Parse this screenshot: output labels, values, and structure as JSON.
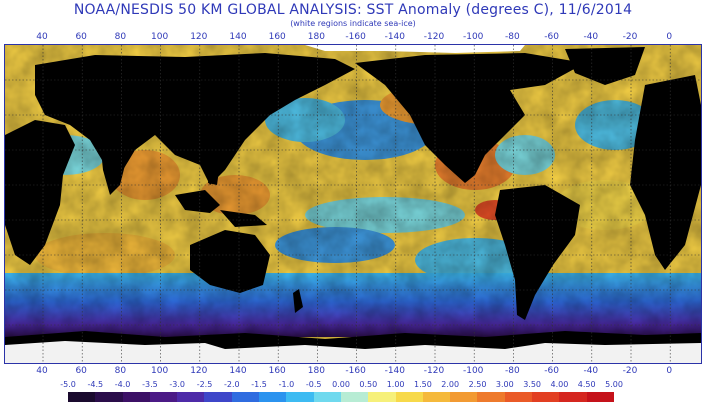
{
  "header": {
    "title": "NOAA/NESDIS 50 KM GLOBAL ANALYSIS: SST Anomaly (degrees C), 11/6/2014",
    "subtitle": "(white regions indicate sea-ice)"
  },
  "axis": {
    "longitude_labels": [
      "40",
      "60",
      "80",
      "100",
      "120",
      "140",
      "160",
      "180",
      "-160",
      "-140",
      "-120",
      "-100",
      "-80",
      "-60",
      "-40",
      "-20",
      "0"
    ]
  },
  "legend": {
    "labels": [
      "-5.0",
      "-4.5",
      "-4.0",
      "-3.5",
      "-3.0",
      "-2.5",
      "-2.0",
      "-1.5",
      "-1.0",
      "-0.5",
      "0.00",
      "0.50",
      "1.00",
      "1.50",
      "2.00",
      "2.50",
      "3.00",
      "3.50",
      "4.00",
      "4.50",
      "5.00"
    ],
    "colors": [
      "#1a0a2e",
      "#2a0d4a",
      "#3c1066",
      "#4b1a86",
      "#4d2aa8",
      "#3e46c9",
      "#2f6ce0",
      "#2b93ef",
      "#3dbbf2",
      "#6fd9ee",
      "#b7ecd4",
      "#f6f07a",
      "#f7d94a",
      "#f5b93b",
      "#f29a32",
      "#ee7a2c",
      "#ea5a27",
      "#e23f22",
      "#d5261f",
      "#c5121a"
    ]
  },
  "colors": {
    "land": "#000000",
    "sea_ice": "#ffffff",
    "grid": "#333333",
    "text": "#2f39b8"
  }
}
